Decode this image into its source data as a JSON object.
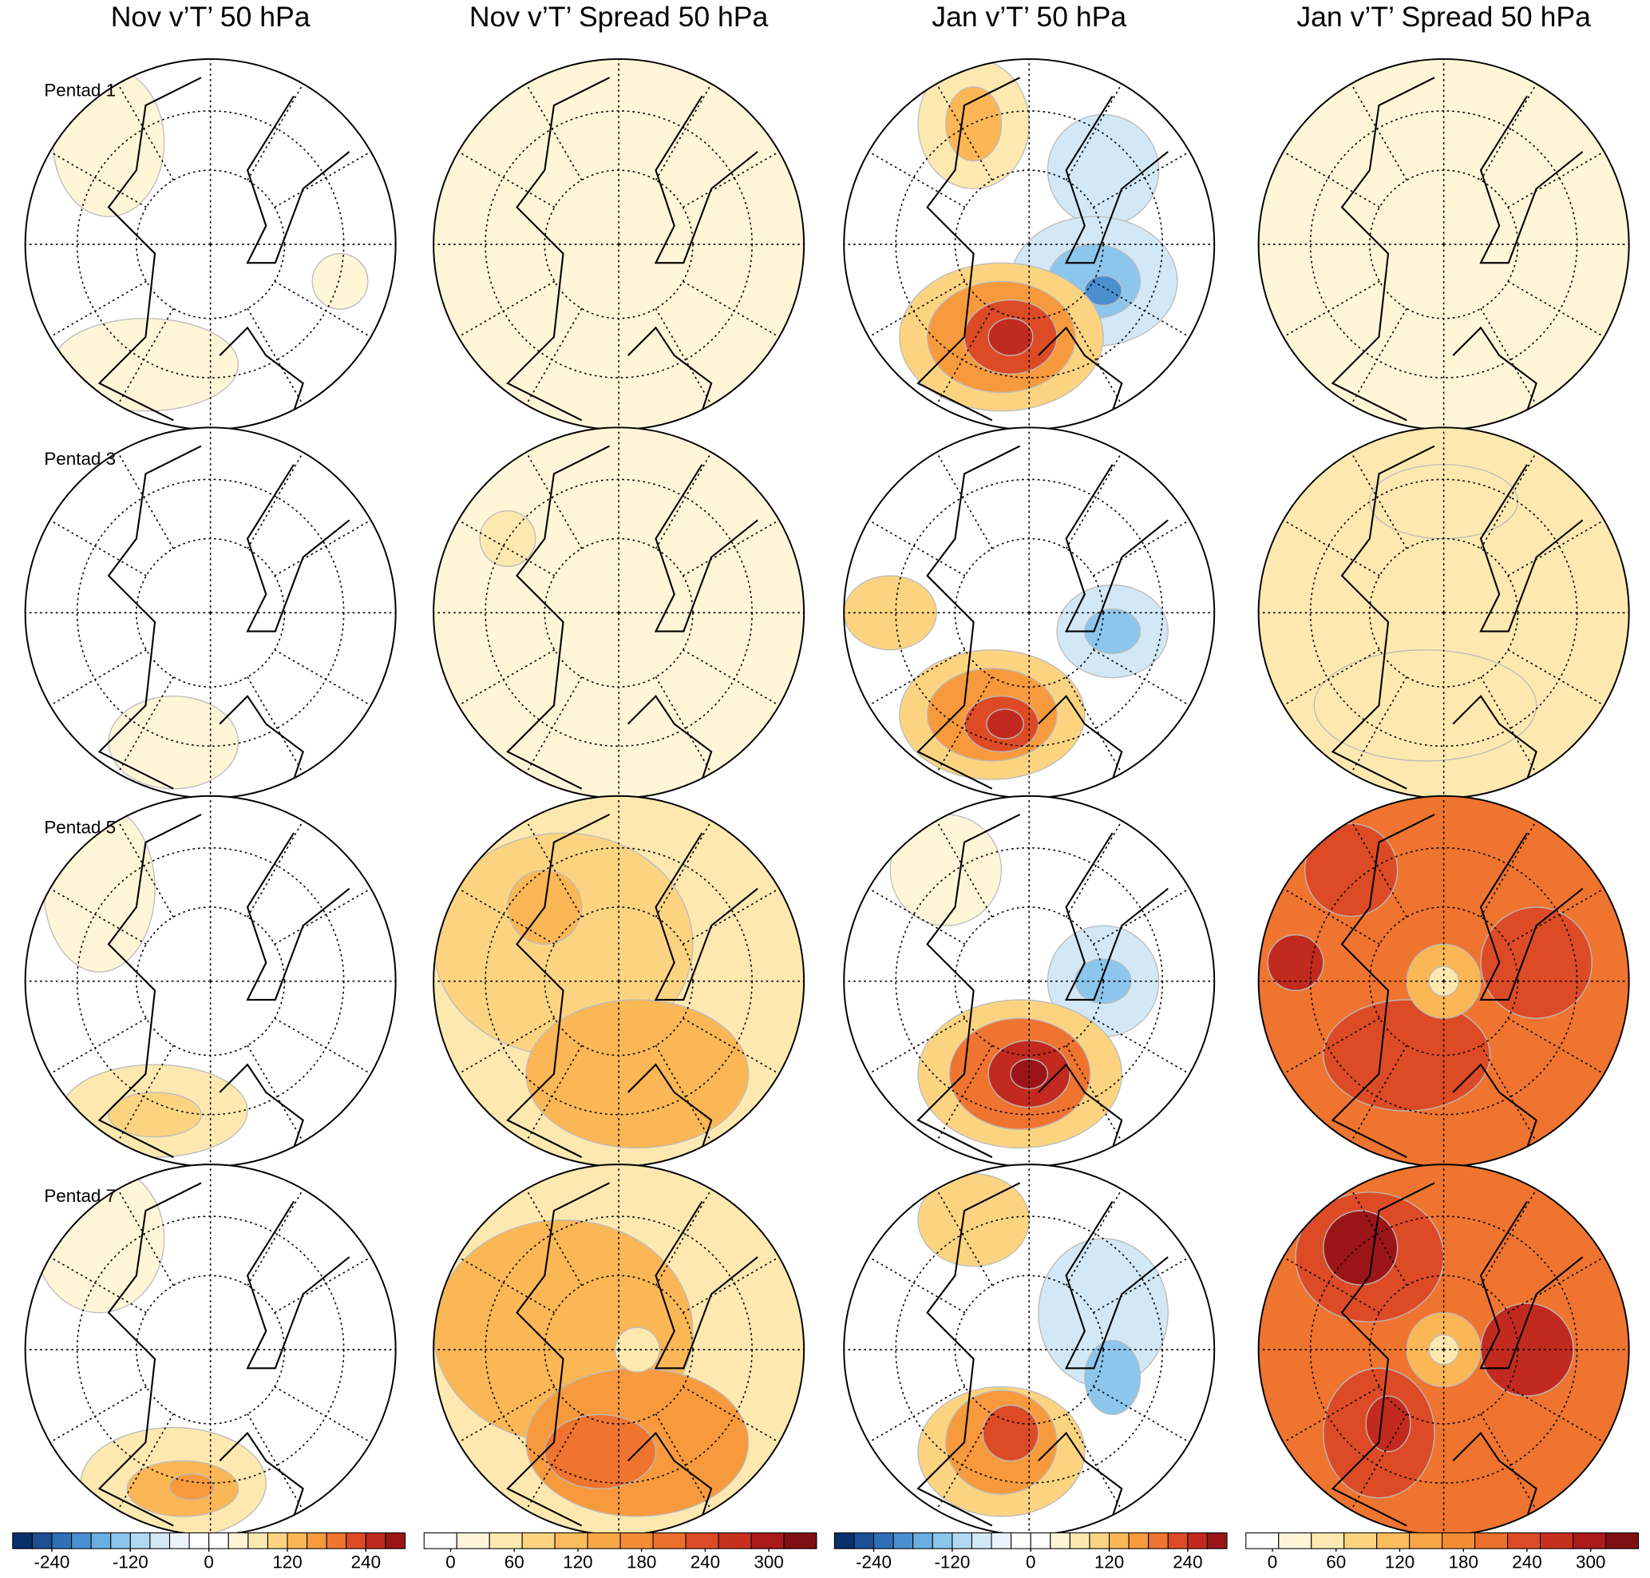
{
  "column_titles": [
    "Nov v’T’ 50 hPa",
    "Nov v’T’ Spread 50 hPa",
    "Jan v’T’ 50 hPa",
    "Jan v’T’ Spread 50 hPa"
  ],
  "row_labels": [
    "Pentad 1",
    "Pentad 3",
    "Pentad 5",
    "Pentad 7"
  ],
  "colorbars": [
    {
      "range": [
        -300,
        300
      ],
      "ticks": [
        -240,
        -120,
        0,
        120,
        240
      ],
      "colors": [
        "#08306b",
        "#1c4f94",
        "#2f6fb5",
        "#4a8fcf",
        "#6aaee0",
        "#8cc6ec",
        "#b0d8f2",
        "#d2e8f7",
        "#eaf3fb",
        "#ffffff",
        "#ffffff",
        "#fff6d8",
        "#fde9b0",
        "#fcd481",
        "#fbb755",
        "#f79a3d",
        "#ef7430",
        "#dd4b26",
        "#c22a1f",
        "#9b1518"
      ]
    },
    {
      "range": [
        -25,
        345
      ],
      "ticks": [
        0,
        60,
        120,
        180,
        240,
        300
      ],
      "colors": [
        "#ffffff",
        "#fff6d8",
        "#fde9b0",
        "#fcd481",
        "#fbbd5c",
        "#f9a644",
        "#f48b35",
        "#ec6f2c",
        "#dd4b26",
        "#c7301f",
        "#aa1a1b",
        "#7f0f12"
      ]
    },
    {
      "range": [
        -300,
        300
      ],
      "ticks": [
        -240,
        -120,
        0,
        120,
        240
      ],
      "colors": [
        "#08306b",
        "#1c4f94",
        "#2f6fb5",
        "#4a8fcf",
        "#6aaee0",
        "#8cc6ec",
        "#b0d8f2",
        "#d2e8f7",
        "#eaf3fb",
        "#ffffff",
        "#ffffff",
        "#fff6d8",
        "#fde9b0",
        "#fcd481",
        "#fbb755",
        "#f79a3d",
        "#ef7430",
        "#dd4b26",
        "#c22a1f",
        "#9b1518"
      ]
    },
    {
      "range": [
        -25,
        345
      ],
      "ticks": [
        0,
        60,
        120,
        180,
        240,
        300
      ],
      "colors": [
        "#ffffff",
        "#fff6d8",
        "#fde9b0",
        "#fcd481",
        "#fbbd5c",
        "#f9a644",
        "#f48b35",
        "#ec6f2c",
        "#dd4b26",
        "#c7301f",
        "#aa1a1b",
        "#7f0f12"
      ]
    }
  ]
}
